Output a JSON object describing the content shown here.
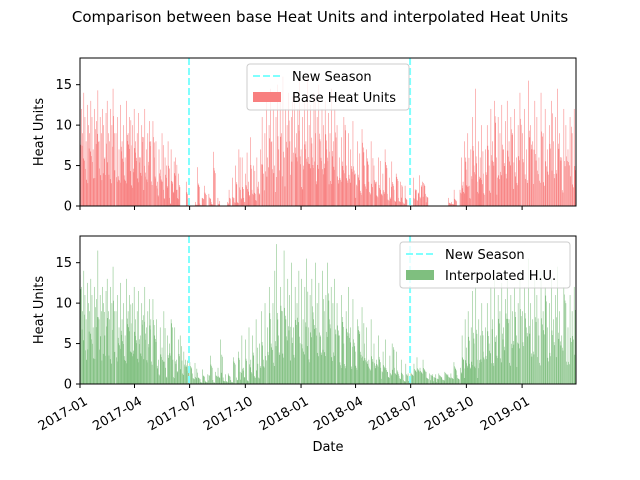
{
  "figure": {
    "title": "Comparison between base Heat Units and interpolated Heat Units"
  },
  "chart_data": [
    {
      "type": "bar",
      "title": "",
      "xlabel": "",
      "ylabel": "Heat Units",
      "xlim": [
        "2017-01-01",
        "2019-03-31"
      ],
      "ylim": [
        0,
        18.3
      ],
      "yticks": [
        0,
        5,
        10,
        15
      ],
      "xtick_dates": [
        "2017-01-01",
        "2017-04-01",
        "2017-07-01",
        "2017-10-01",
        "2018-01-01",
        "2018-04-01",
        "2018-07-01",
        "2018-10-01",
        "2019-01-01"
      ],
      "xtick_labels_visible": false,
      "bar_color": "#f87f7f",
      "season_lines": [
        "2017-06-30",
        "2018-06-30"
      ],
      "season_line_color": "#7ffffe",
      "series": [
        {
          "name": "Base Heat Units",
          "segments": [
            {
              "start": "2017-01-01",
              "end": "2017-02-28",
              "levels": [
                13.5,
                12,
                9,
                14,
                11,
                8,
                12.5,
                10,
                9,
                13,
                11,
                7,
                12,
                9.5,
                10.5,
                14.3,
                8,
                11,
                9,
                12,
                10,
                6,
                11.5,
                13,
                9,
                8,
                12,
                10,
                14.5,
                9
              ]
            },
            {
              "start": "2017-03-01",
              "end": "2017-04-30",
              "levels": [
                9,
                11,
                7,
                12.5,
                8,
                10,
                6,
                13,
                9,
                11,
                7.5,
                10,
                12,
                8,
                9,
                11.5,
                6,
                10,
                8.5,
                12,
                7,
                9,
                10.5,
                8
              ]
            },
            {
              "start": "2017-05-01",
              "end": "2017-06-15",
              "levels": [
                10.5,
                6,
                8,
                3,
                7,
                4.5,
                9,
                2,
                6,
                5,
                8,
                1,
                7,
                3,
                5.5,
                6,
                2,
                4
              ]
            },
            {
              "start": "2017-06-25",
              "end": "2017-06-29",
              "levels": [
                3,
                1.5
              ]
            },
            {
              "start": "2017-07-10",
              "end": "2017-08-20",
              "levels": [
                0.5,
                4.8,
                0.3,
                1,
                2.5,
                0,
                1.5,
                0.5,
                6.7,
                0,
                1
              ]
            },
            {
              "start": "2017-09-01",
              "end": "2017-10-25",
              "levels": [
                0.5,
                2,
                0,
                3.5,
                1,
                5,
                0.5,
                7,
                2,
                6,
                1,
                4,
                6.6,
                3,
                8.5,
                2,
                5,
                1.5,
                6,
                3
              ]
            },
            {
              "start": "2017-10-26",
              "end": "2017-12-20",
              "levels": [
                7,
                11,
                4,
                9,
                13,
                6,
                10,
                14.5,
                8,
                12,
                5,
                11,
                15,
                7,
                13,
                9,
                16,
                6,
                12,
                10,
                14,
                8,
                11,
                13.5
              ]
            },
            {
              "start": "2017-12-21",
              "end": "2018-02-28",
              "levels": [
                14,
                9,
                12,
                15.5,
                7,
                11,
                13,
                8,
                16,
                10,
                12.5,
                6,
                14,
                9,
                11,
                15,
                8,
                12,
                10,
                13,
                7,
                11.5,
                9,
                14.5,
                8,
                12
              ]
            },
            {
              "start": "2018-03-01",
              "end": "2018-04-30",
              "levels": [
                10,
                6,
                8.5,
                11,
                5,
                9,
                7,
                10.5,
                4,
                8,
                6.5,
                9.5,
                5,
                7,
                3,
                8
              ]
            },
            {
              "start": "2018-05-01",
              "end": "2018-06-25",
              "levels": [
                5,
                3,
                6,
                2,
                4,
                7,
                1.5,
                3.5,
                5.5,
                2,
                4,
                1,
                3,
                0.5,
                2.5
              ]
            },
            {
              "start": "2018-07-05",
              "end": "2018-07-30",
              "levels": [
                3.5,
                2,
                3.8,
                3,
                1.5
              ]
            },
            {
              "start": "2018-09-01",
              "end": "2018-09-15",
              "levels": [
                1,
                0.5,
                2
              ]
            },
            {
              "start": "2018-09-20",
              "end": "2018-10-31",
              "levels": [
                2,
                6,
                3,
                8,
                4.5,
                9,
                2.5,
                7,
                11,
                5,
                14.5,
                3,
                8,
                6,
                10,
                4
              ]
            },
            {
              "start": "2018-11-01",
              "end": "2018-12-31",
              "levels": [
                7,
                10,
                5,
                12,
                8,
                13,
                6,
                11,
                9,
                12.5,
                7,
                10.5,
                13,
                8,
                11,
                9,
                12,
                6,
                10,
                14
              ]
            },
            {
              "start": "2019-01-01",
              "end": "2019-03-31",
              "levels": [
                9,
                12,
                7,
                15.5,
                10,
                8,
                13,
                11,
                6,
                14,
                9,
                12,
                7,
                10,
                13,
                8,
                11,
                14.5,
                9,
                6,
                12,
                10,
                7,
                11,
                9,
                12
              ]
            }
          ]
        }
      ]
    },
    {
      "type": "bar",
      "title": "",
      "xlabel": "Date",
      "ylabel": "Heat Units",
      "xlim": [
        "2017-01-01",
        "2019-03-31"
      ],
      "ylim": [
        0,
        18.3
      ],
      "yticks": [
        0,
        5,
        10,
        15
      ],
      "xtick_dates": [
        "2017-01-01",
        "2017-04-01",
        "2017-07-01",
        "2017-10-01",
        "2018-01-01",
        "2018-04-01",
        "2018-07-01",
        "2018-10-01",
        "2019-01-01"
      ],
      "xtick_labels": [
        "2017-01",
        "2017-04",
        "2017-07",
        "2017-10",
        "2018-01",
        "2018-04",
        "2018-07",
        "2018-10",
        "2019-01"
      ],
      "xtick_labels_visible": true,
      "bar_color": "#7fbf7f",
      "season_lines": [
        "2017-06-30",
        "2018-06-30"
      ],
      "season_line_color": "#7ffffe",
      "series": [
        {
          "name": "Interpolated H.U.",
          "segments": [
            {
              "start": "2017-01-01",
              "end": "2017-02-28",
              "levels": [
                13.5,
                12,
                9,
                14,
                11,
                8,
                12.5,
                10,
                9,
                13,
                11,
                7,
                12,
                9.5,
                10.5,
                16.5,
                8,
                11,
                9,
                12,
                10,
                6,
                11.5,
                13,
                9,
                8,
                12,
                10,
                14.5,
                9
              ]
            },
            {
              "start": "2017-03-01",
              "end": "2017-04-30",
              "levels": [
                9,
                11,
                7,
                12.5,
                8,
                10,
                6,
                13,
                9,
                11,
                7.5,
                10,
                12,
                8,
                9,
                11.5,
                6,
                10,
                8.5,
                12,
                7,
                9,
                10.5,
                8
              ]
            },
            {
              "start": "2017-05-01",
              "end": "2017-06-30",
              "levels": [
                10.5,
                6,
                8,
                3,
                7,
                4.5,
                9,
                2,
                6,
                5,
                8,
                3,
                7,
                3,
                5.5,
                6,
                2.9,
                4,
                3,
                2.9
              ]
            },
            {
              "start": "2017-07-01",
              "end": "2017-09-15",
              "levels": [
                2.7,
                1.3,
                2.6,
                1.4,
                0.6,
                1.8,
                0.4,
                1.2,
                3.5,
                0.5,
                1.5,
                2,
                5.5,
                0.8,
                1.2,
                1.3,
                0.5,
                3.3
              ]
            },
            {
              "start": "2017-09-16",
              "end": "2017-11-05",
              "levels": [
                0.8,
                4,
                1.5,
                6,
                2,
                5.5,
                0.5,
                7,
                3,
                6,
                1,
                8,
                2.5,
                5,
                9,
                3,
                10
              ]
            },
            {
              "start": "2017-11-06",
              "end": "2017-12-31",
              "levels": [
                7,
                12,
                5,
                10,
                14,
                17.3,
                6,
                12,
                9,
                16.5,
                8,
                13,
                11,
                15,
                7,
                12,
                10,
                14
              ]
            },
            {
              "start": "2018-01-01",
              "end": "2018-02-28",
              "levels": [
                13,
                8,
                12,
                15.5,
                7,
                11,
                13,
                8,
                15,
                10,
                12.5,
                6,
                14,
                9,
                11,
                15,
                8,
                12,
                10,
                13
              ]
            },
            {
              "start": "2018-03-01",
              "end": "2018-04-30",
              "levels": [
                10,
                6,
                11,
                5,
                9,
                12,
                7,
                10.5,
                4,
                8,
                6.5,
                9.5,
                5,
                7,
                3,
                8
              ]
            },
            {
              "start": "2018-05-01",
              "end": "2018-06-30",
              "levels": [
                5,
                3,
                6,
                2,
                4,
                5.5,
                1.5,
                3.5,
                5,
                2,
                4,
                1,
                3,
                0.5,
                2.5,
                1.3
              ]
            },
            {
              "start": "2018-07-01",
              "end": "2018-07-31",
              "levels": [
                1.4,
                2.5,
                3.3,
                2,
                3,
                1.5
              ]
            },
            {
              "start": "2018-08-01",
              "end": "2018-09-20",
              "levels": [
                1.3,
                1.2,
                1.2,
                1.3,
                0.8,
                1.5,
                1.2,
                1.3,
                2.7,
                1.1
              ]
            },
            {
              "start": "2018-09-21",
              "end": "2018-10-31",
              "levels": [
                2,
                6,
                3,
                8,
                4.5,
                9,
                2.5,
                7,
                11.5,
                5,
                12,
                3,
                8,
                6,
                10,
                4
              ]
            },
            {
              "start": "2018-11-01",
              "end": "2018-12-31",
              "levels": [
                7,
                10,
                5,
                12,
                8,
                13,
                6,
                11,
                9,
                12.5,
                7,
                10.5,
                13,
                8,
                11,
                9,
                12,
                6,
                10,
                14
              ]
            },
            {
              "start": "2019-01-01",
              "end": "2019-03-31",
              "levels": [
                9,
                12,
                7,
                15.5,
                10,
                8,
                13,
                11,
                6,
                14,
                9,
                12,
                7,
                10,
                13,
                8,
                11,
                14.5,
                9,
                6,
                12,
                10,
                7,
                11,
                9,
                12
              ]
            }
          ]
        }
      ]
    }
  ],
  "legends": [
    {
      "placement": "upper-center",
      "entries": [
        {
          "label": "New Season",
          "kind": "dashed-line",
          "color": "#7ffffe"
        },
        {
          "label": "Base Heat Units",
          "kind": "patch",
          "color": "#f87f7f"
        }
      ]
    },
    {
      "placement": "upper-right",
      "entries": [
        {
          "label": "New Season",
          "kind": "dashed-line",
          "color": "#7ffffe"
        },
        {
          "label": "Interpolated H.U.",
          "kind": "patch",
          "color": "#7fbf7f"
        }
      ]
    }
  ]
}
